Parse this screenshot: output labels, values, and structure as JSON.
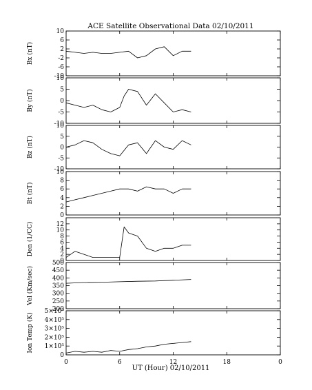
{
  "chart_data": {
    "type": "line",
    "title": "ACE Satellite Observational Data   02/10/2011",
    "xlabel": "UT (Hour)  02/10/2011",
    "x_ticks": [
      "0",
      "6",
      "12",
      "18",
      "0"
    ],
    "xlim": [
      0,
      24
    ],
    "panels": [
      {
        "ylabel": "Bx (nT)",
        "ylim": [
          -10,
          10
        ],
        "yticks": [
          "10",
          "6",
          "2",
          "-2",
          "-6",
          "-10"
        ],
        "ytick_values": [
          10,
          6,
          2,
          -2,
          -6,
          -10
        ],
        "series": [
          {
            "x": [
              0,
              1,
              2,
              3,
              4,
              5,
              6,
              7,
              8,
              9,
              10,
              11,
              12,
              13,
              14
            ],
            "y": [
              1,
              0.5,
              0,
              0.5,
              0,
              0,
              0.5,
              1,
              -2,
              -1,
              2,
              3,
              -1,
              1,
              1
            ]
          }
        ]
      },
      {
        "ylabel": "By (nT)",
        "ylim": [
          -10,
          10
        ],
        "yticks": [
          "10",
          "5",
          "0",
          "-5",
          "-10"
        ],
        "ytick_values": [
          10,
          5,
          0,
          -5,
          -10
        ],
        "series": [
          {
            "x": [
              0,
              1,
              2,
              3,
              4,
              5,
              6,
              6.5,
              7,
              8,
              9,
              10,
              11,
              12,
              13,
              14
            ],
            "y": [
              -1,
              -2,
              -3,
              -2,
              -4,
              -5,
              -3,
              2,
              5,
              4,
              -2,
              3,
              -1,
              -5,
              -4,
              -5
            ]
          }
        ]
      },
      {
        "ylabel": "Bz (nT)",
        "ylim": [
          -10,
          10
        ],
        "yticks": [
          "10",
          "5",
          "0",
          "-5",
          "-10"
        ],
        "ytick_values": [
          10,
          5,
          0,
          -5,
          -10
        ],
        "series": [
          {
            "x": [
              0,
              1,
              2,
              3,
              4,
              5,
              6,
              7,
              8,
              9,
              10,
              11,
              12,
              13,
              14
            ],
            "y": [
              0,
              1,
              3,
              2,
              -1,
              -3,
              -4,
              1,
              2,
              -3,
              3,
              0,
              -1,
              3,
              1
            ]
          }
        ]
      },
      {
        "ylabel": "Bt (nT)",
        "ylim": [
          0,
          10
        ],
        "yticks": [
          "10",
          "8",
          "6",
          "4",
          "2",
          "0"
        ],
        "ytick_values": [
          10,
          8,
          6,
          4,
          2,
          0
        ],
        "series": [
          {
            "x": [
              0,
              1,
              2,
              3,
              4,
              5,
              6,
              7,
              8,
              9,
              10,
              11,
              12,
              13,
              14
            ],
            "y": [
              3,
              3.5,
              4,
              4.5,
              5,
              5.5,
              6,
              6,
              5.5,
              6.5,
              6,
              6,
              5,
              6,
              6
            ]
          }
        ]
      },
      {
        "ylabel": "Den (1/CC)",
        "ylim": [
          0,
          14
        ],
        "yticks": [
          "12",
          "10",
          "8",
          "6",
          "4",
          "2",
          "0"
        ],
        "ytick_values": [
          12,
          10,
          8,
          6,
          4,
          2,
          0
        ],
        "series": [
          {
            "x": [
              0,
              1,
              2,
              3,
              4,
              5,
              6,
              6.5,
              7,
              8,
              9,
              10,
              11,
              12,
              13,
              14
            ],
            "y": [
              1,
              3,
              2,
              1,
              1,
              1,
              1,
              11,
              9,
              8,
              4,
              3,
              4,
              4,
              5,
              5
            ]
          }
        ]
      },
      {
        "ylabel": "Vel (Km/sec)",
        "ylim": [
          200,
          500
        ],
        "yticks": [
          "500",
          "450",
          "400",
          "350",
          "300",
          "250",
          "200"
        ],
        "ytick_values": [
          500,
          450,
          400,
          350,
          300,
          250,
          200
        ],
        "series": [
          {
            "x": [
              0,
              2,
              4,
              6,
              8,
              10,
              12,
              14
            ],
            "y": [
              365,
              370,
              372,
              375,
              378,
              380,
              385,
              390
            ]
          }
        ]
      },
      {
        "ylabel": "Ion Temp (K)",
        "ylim": [
          0,
          500000
        ],
        "yticks": [
          "5×10⁵",
          "4×10⁵",
          "3×10⁵",
          "2×10⁵",
          "1×10⁵",
          "0"
        ],
        "ytick_values": [
          500000,
          400000,
          300000,
          200000,
          100000,
          0
        ],
        "series": [
          {
            "x": [
              0,
              1,
              2,
              3,
              4,
              5,
              6,
              7,
              8,
              9,
              10,
              11,
              12,
              13,
              14
            ],
            "y": [
              20000,
              40000,
              30000,
              40000,
              30000,
              50000,
              40000,
              60000,
              70000,
              90000,
              100000,
              120000,
              130000,
              140000,
              150000
            ]
          }
        ]
      }
    ]
  }
}
